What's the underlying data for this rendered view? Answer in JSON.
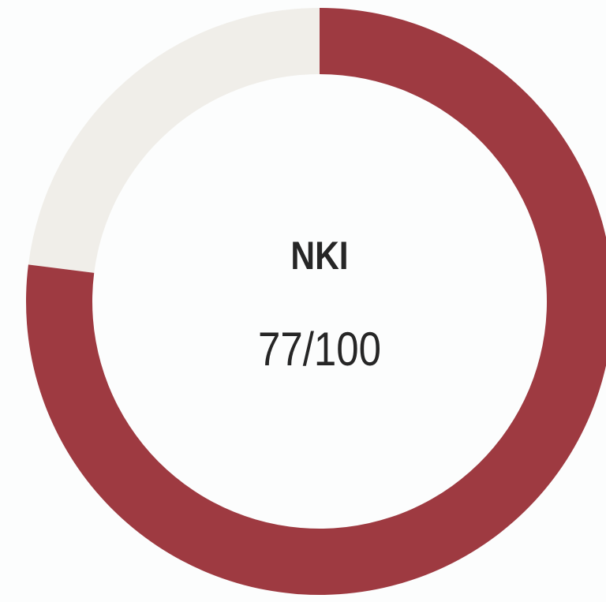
{
  "chart_data": {
    "type": "donut",
    "title": "NKI",
    "values": [
      77
    ],
    "value_labels": [
      "77/100"
    ],
    "ylim": [
      0,
      100
    ],
    "color": "#9e3a41",
    "track_color": "#f0eee9"
  }
}
